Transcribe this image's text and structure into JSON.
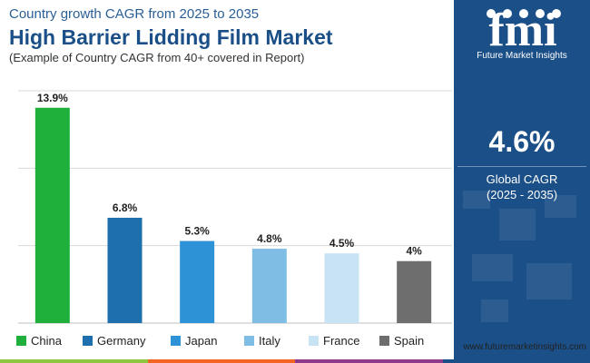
{
  "header": {
    "subtitle": "Country growth CAGR from 2025 to 2035",
    "title": "High Barrier Lidding Film Market",
    "note": "(Example of Country CAGR from 40+ covered in Report)"
  },
  "chart_data": {
    "type": "bar",
    "categories": [
      "China",
      "Germany",
      "Japan",
      "Italy",
      "France",
      "Spain"
    ],
    "values": [
      13.9,
      6.8,
      5.3,
      4.8,
      4.5,
      4.0
    ],
    "value_labels": [
      "13.9%",
      "6.8%",
      "5.3%",
      "4.8%",
      "4.5%",
      "4%"
    ],
    "colors": [
      "#1fb03b",
      "#1d6fae",
      "#2e93d6",
      "#7fbde5",
      "#c8e3f3",
      "#6e6e6e"
    ],
    "ylim": [
      0,
      15
    ],
    "grid": true,
    "legend_position": "bottom"
  },
  "panel": {
    "logo_text": "fmi",
    "logo_caption": "Future Market Insights",
    "metric_value": "4.6%",
    "metric_label": "Global CAGR",
    "metric_period": "(2025 - 2035)"
  },
  "footer": {
    "url": "www.futuremarketinsights.com"
  },
  "colors": {
    "title": "#1b4f87",
    "panel_bg": "#1b4f87",
    "bottom_bar": [
      "#8dc63f",
      "#f26522",
      "#8e3b8f",
      "#1b4f87"
    ]
  }
}
